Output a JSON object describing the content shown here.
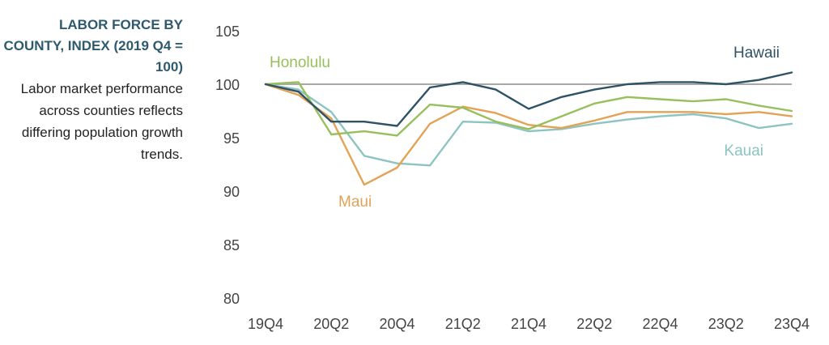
{
  "sidebar": {
    "title": "LABOR FORCE BY COUNTY, INDEX (2019 Q4 = 100)",
    "subtitle": "Labor market performance across counties reflects differing population growth trends."
  },
  "chart_data": {
    "type": "line",
    "title": "LABOR FORCE BY COUNTY, INDEX (2019 Q4 = 100)",
    "xlabel": "",
    "ylabel": "",
    "ylim": [
      80,
      105
    ],
    "y_ticks": [
      80,
      85,
      90,
      95,
      100,
      105
    ],
    "x": [
      "19Q4",
      "20Q1",
      "20Q2",
      "20Q3",
      "20Q4",
      "21Q1",
      "21Q2",
      "21Q3",
      "21Q4",
      "22Q1",
      "22Q2",
      "22Q3",
      "22Q4",
      "23Q1",
      "23Q2",
      "23Q3",
      "23Q4"
    ],
    "x_tick_labels": [
      "19Q4",
      "20Q2",
      "20Q4",
      "21Q2",
      "21Q4",
      "22Q2",
      "22Q4",
      "23Q2",
      "23Q4"
    ],
    "grid": false,
    "reference_line": 100,
    "legend": "inline labels",
    "series": [
      {
        "name": "Hawaii",
        "color": "#2e5366",
        "values": [
          100,
          99.3,
          96.5,
          96.5,
          96.1,
          99.7,
          100.2,
          99.5,
          97.7,
          98.8,
          99.5,
          100.0,
          100.2,
          100.2,
          100.0,
          100.4,
          101.1
        ]
      },
      {
        "name": "Honolulu",
        "color": "#97c05c",
        "values": [
          100,
          100.2,
          95.3,
          95.6,
          95.2,
          98.1,
          97.8,
          96.5,
          95.8,
          97.0,
          98.2,
          98.8,
          98.6,
          98.4,
          98.6,
          98.0,
          97.5
        ]
      },
      {
        "name": "Maui",
        "color": "#e3a357",
        "values": [
          100,
          99.0,
          96.8,
          90.6,
          92.2,
          96.3,
          97.9,
          97.3,
          96.2,
          95.9,
          96.6,
          97.4,
          97.4,
          97.4,
          97.2,
          97.4,
          97.0
        ]
      },
      {
        "name": "Kauai",
        "color": "#8dc4c1",
        "values": [
          100,
          99.5,
          97.4,
          93.3,
          92.6,
          92.4,
          96.5,
          96.4,
          95.6,
          95.8,
          96.3,
          96.7,
          97.0,
          97.2,
          96.8,
          95.9,
          96.3
        ]
      }
    ]
  }
}
